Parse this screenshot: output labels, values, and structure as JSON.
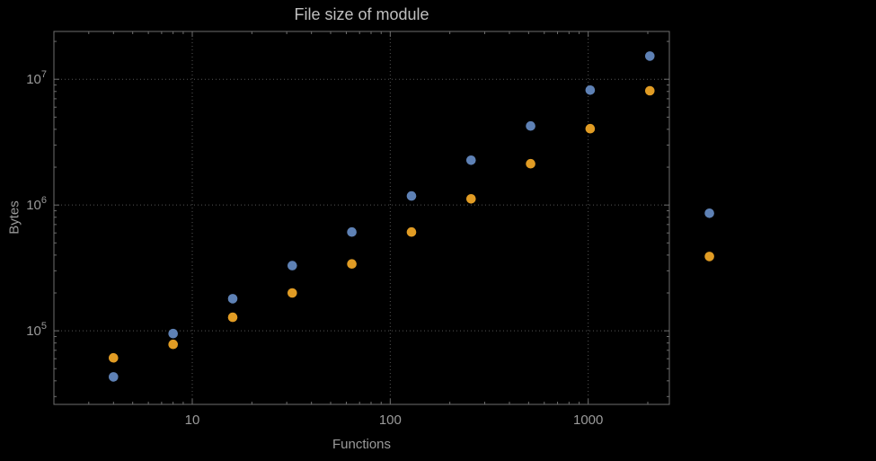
{
  "chart_data": {
    "type": "scatter",
    "title": "File size of module",
    "xlabel": "Functions",
    "ylabel": "Bytes",
    "x_scale": "log",
    "y_scale": "log",
    "xlim": [
      2,
      2570
    ],
    "ylim": [
      26000,
      24000000
    ],
    "x_ticks": [
      10,
      100,
      1000
    ],
    "x_tick_labels": [
      "10",
      "100",
      "1000"
    ],
    "y_ticks": [
      100000,
      1000000,
      10000000
    ],
    "y_tick_base": "10",
    "y_tick_exponents": [
      "5",
      "6",
      "7"
    ],
    "grid": true,
    "legend": "none",
    "x": [
      4,
      8,
      16,
      32,
      64,
      128,
      256,
      512,
      1024,
      2048,
      4096
    ],
    "series": [
      {
        "name": "series-1-blue",
        "color": "#5e81b5",
        "values": [
          43000,
          95000,
          180000,
          330000,
          610000,
          1180000,
          2270000,
          4250000,
          8200000,
          15300000,
          860000
        ]
      },
      {
        "name": "series-2-orange",
        "color": "#e19c24",
        "values": [
          61000,
          78000,
          128000,
          200000,
          340000,
          610000,
          1120000,
          2130000,
          4050000,
          8100000,
          390000
        ]
      }
    ]
  },
  "colors": {
    "bg": "#000000",
    "frame": "#6e6e6e",
    "grid": "#545454",
    "title": "#bfbfbf",
    "label": "#9a9a9a",
    "series1": "#5e81b5",
    "series2": "#e19c24"
  }
}
